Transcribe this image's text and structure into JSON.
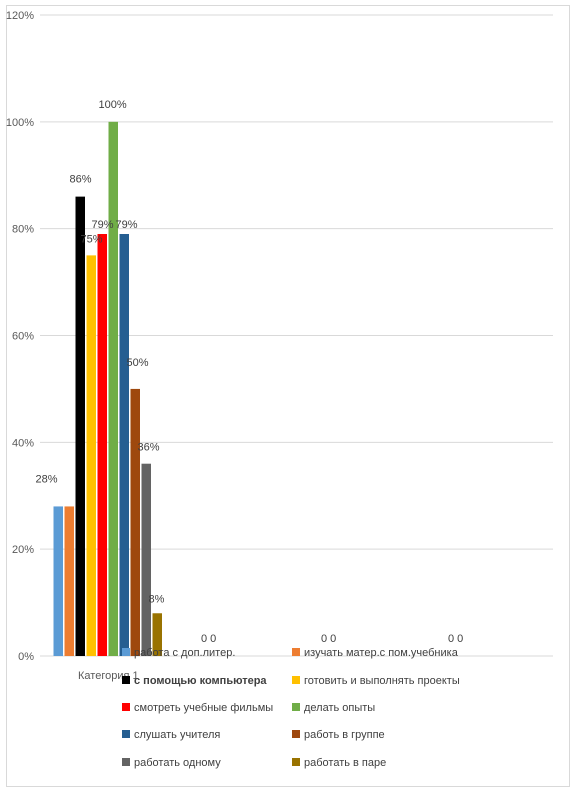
{
  "chart_data": {
    "type": "bar",
    "title": "",
    "xlabel": "",
    "ylabel": "",
    "ylim": [
      0,
      1.2
    ],
    "yticks": [
      "0%",
      "20%",
      "40%",
      "60%",
      "80%",
      "100%",
      "120%"
    ],
    "categories": [
      "Категория 1"
    ],
    "grid": true,
    "legend_position": "bottom",
    "series": [
      {
        "name": "работа с доп.литер.",
        "values": [
          0.28
        ],
        "color": "#5b9bd5",
        "label": "28%"
      },
      {
        "name": "изучать матер.с пом.учебника",
        "values": [
          0.28
        ],
        "color": "#ed7d31",
        "label": ""
      },
      {
        "name": "с помощью компьютера",
        "values": [
          0.86
        ],
        "color": "#000000",
        "label": "86%",
        "bold": true
      },
      {
        "name": "готовить и выполнять проекты",
        "values": [
          0.75
        ],
        "color": "#ffc000",
        "label": "75%"
      },
      {
        "name": "смотреть учебные фильмы",
        "values": [
          0.79
        ],
        "color": "#ff0000",
        "label": "79%"
      },
      {
        "name": "делать опыты",
        "values": [
          1.0
        ],
        "color": "#70ad47",
        "label": "100%"
      },
      {
        "name": "слушать учителя",
        "values": [
          0.79
        ],
        "color": "#255e91",
        "label": "79%"
      },
      {
        "name": "работь в группе",
        "values": [
          0.5
        ],
        "color": "#9e480e",
        "label": "50%"
      },
      {
        "name": "работать одному",
        "values": [
          0.36
        ],
        "color": "#636363",
        "label": "36%"
      },
      {
        "name": "работать в паре",
        "values": [
          0.08
        ],
        "color": "#997300",
        "label": "8%"
      }
    ],
    "extra_labels": [
      "0 0",
      "0 0",
      "0 0"
    ]
  }
}
